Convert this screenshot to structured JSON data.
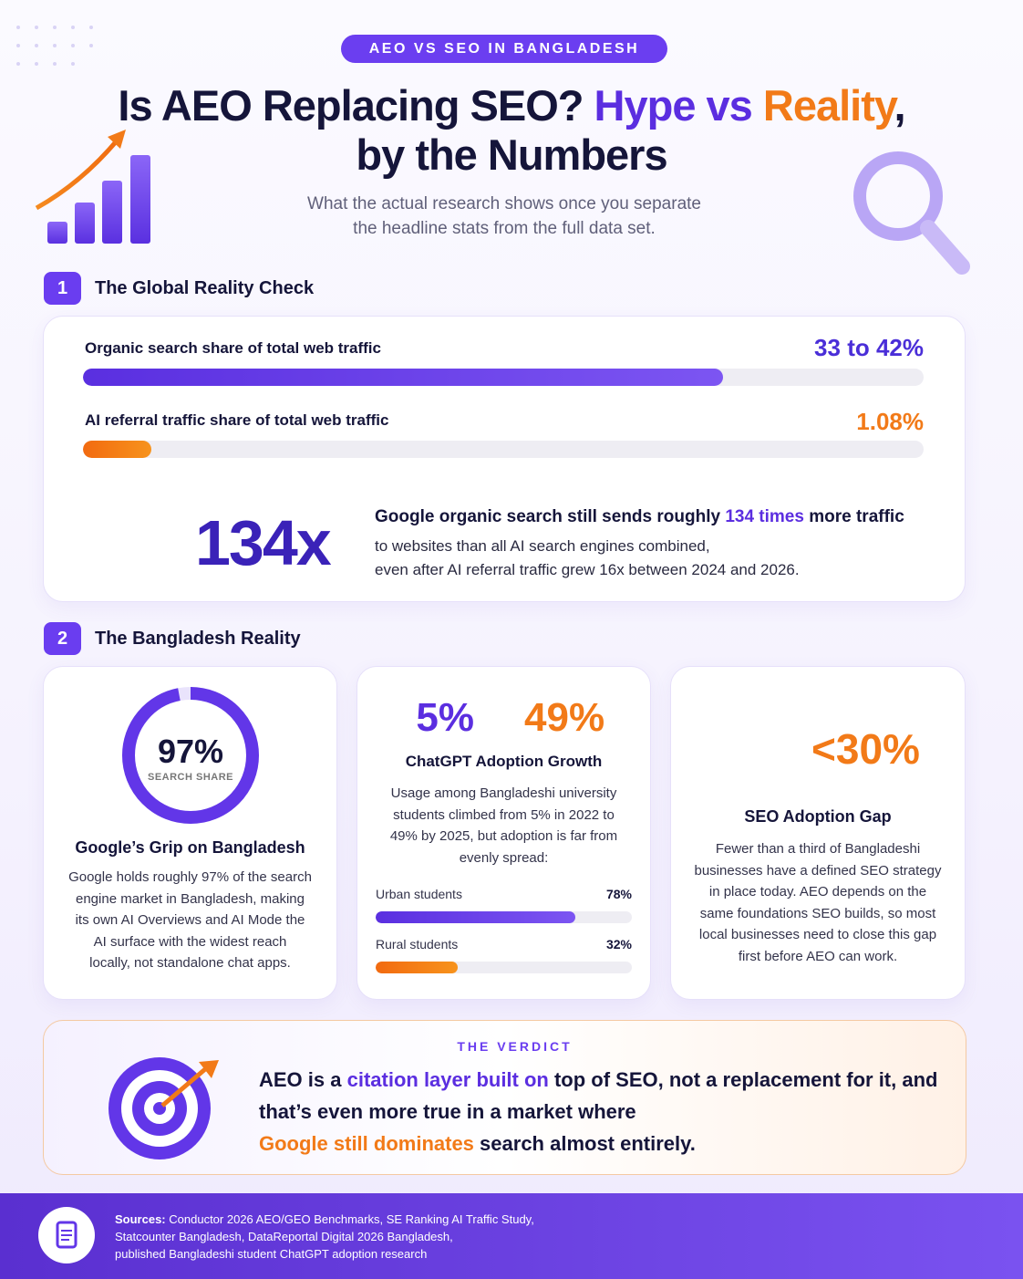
{
  "header": {
    "badge": "AEO VS SEO IN BANGLADESH",
    "title": [
      "Is AEO Replacing SEO?",
      "Hype vs",
      "Reality",
      ",",
      "by the Numbers"
    ],
    "subtitle": [
      "What the actual research shows once you separate",
      "the headline stats from the full data set."
    ]
  },
  "section1": {
    "number": "1",
    "title": "The Global Reality Check",
    "metrics": [
      {
        "label": "Organic search share of total web traffic",
        "value": "33 to 42%"
      },
      {
        "label": "AI referral traffic share of total web traffic",
        "value": "1.08%"
      }
    ],
    "highlight": {
      "stat": "134x",
      "lead": [
        "Google organic search still sends roughly",
        "134 times",
        "more traffic"
      ],
      "body": [
        "to websites than all AI search engines combined,",
        "even after AI referral traffic grew 16x between 2024 and 2026."
      ]
    }
  },
  "section2": {
    "number": "2",
    "title": "The Bangladesh Reality",
    "cards": [
      {
        "donut": {
          "value": 97,
          "label": "97%"
        },
        "caption": "SEARCH SHARE",
        "title": "Google’s Grip on Bangladesh",
        "body": [
          "Google holds roughly 97% of the search",
          "engine market in Bangladesh, making",
          "its own AI Overviews and AI Mode the",
          "AI surface with the widest reach",
          "locally, not standalone chat apps."
        ]
      },
      {
        "from": "5%",
        "to": "49%",
        "title": "ChatGPT Adoption Growth",
        "body": [
          "Usage among Bangladeshi university",
          "students climbed from 5% in 2022 to",
          "49% by 2025, but adoption is far from",
          "evenly spread:"
        ],
        "bars": [
          {
            "name": "Urban students",
            "value": 78,
            "label": "78%"
          },
          {
            "name": "Rural students",
            "value": 32,
            "label": "32%"
          }
        ]
      },
      {
        "stat": "<30%",
        "title": "SEO Adoption Gap",
        "body": [
          "Fewer than a third of Bangladeshi",
          "businesses have a defined SEO strategy",
          "in place today. AEO depends on the",
          "same foundations SEO builds, so most",
          "local businesses need to close this gap",
          "first before AEO can work."
        ]
      }
    ]
  },
  "verdict": {
    "eyebrow": "THE VERDICT",
    "text": [
      "AEO is a",
      "citation layer built on",
      "top of SEO, not a replacement for it, and",
      "that’s even more true in a market where",
      "Google still dominates",
      "search almost entirely."
    ]
  },
  "footer": {
    "label": "Sources:",
    "lines": [
      "Conductor 2026 AEO/GEO Benchmarks, SE Ranking AI Traffic Study,",
      "Statcounter Bangladesh, DataReportal Digital 2026 Bangladesh,",
      "published Bangladeshi student ChatGPT adoption research"
    ]
  }
}
